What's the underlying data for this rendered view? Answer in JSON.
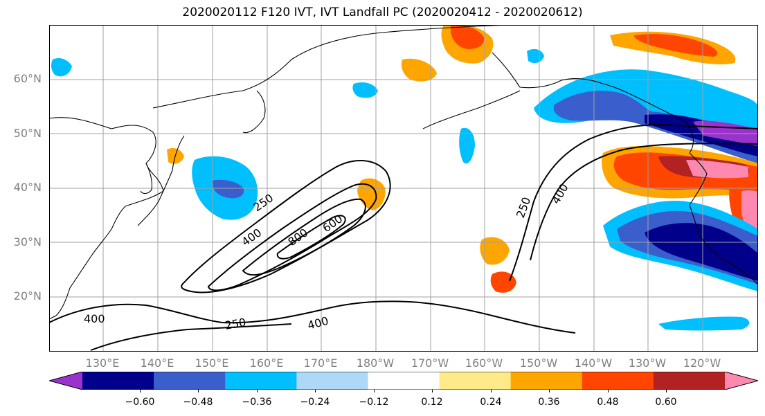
{
  "title": "2020020112 F120 IVT, IVT Landfall PC (2020020412 - 2020020612)",
  "latitude_labels": [
    "60°N",
    "50°N",
    "40°N",
    "30°N",
    "20°N"
  ],
  "longitude_labels": [
    "130°E",
    "140°E",
    "150°E",
    "160°E",
    "170°E",
    "180°W",
    "170°W",
    "160°W",
    "150°W",
    "140°W",
    "130°W",
    "120°W"
  ],
  "contour_labels": [
    "250",
    "400",
    "800",
    "600",
    "250",
    "400",
    "400",
    "250",
    "400"
  ],
  "colorbar": {
    "tick_labels": [
      "−0.60",
      "−0.48",
      "−0.36",
      "−0.24",
      "−0.12",
      "0.12",
      "0.24",
      "0.36",
      "0.48",
      "0.60"
    ],
    "colors": [
      "#9933cc",
      "#00008b",
      "#3a5fcd",
      "#00bfff",
      "#add8f6",
      "#ffffff",
      "#ffea8a",
      "#ffa500",
      "#ff4500",
      "#b22222",
      "#ff88b0"
    ]
  },
  "colors": {
    "coastline": "#000000",
    "gridline": "#a0a0a0",
    "ivt_contour": "#000000"
  }
}
